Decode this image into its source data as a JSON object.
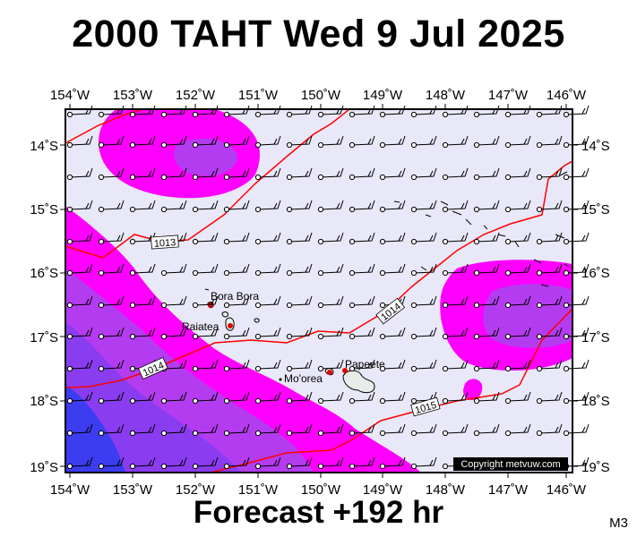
{
  "title": "2000 TAHT Wed 9 Jul 2025",
  "subtitle": "Forecast +192 hr",
  "code": "M3",
  "copyright": "Copyright metvuw.com",
  "colors": {
    "background": "#e8e8f8",
    "magenta": "#ff00ff",
    "violet": "#b43cf0",
    "purple": "#8a3cf0",
    "blue": "#3c3cf0",
    "isobar": "#ff0000",
    "frame": "#000000"
  },
  "axes": {
    "lon_labels": [
      "154˚W",
      "153˚W",
      "152˚W",
      "151˚W",
      "150˚W",
      "149˚W",
      "148˚W",
      "147˚W",
      "146˚W"
    ],
    "lat_labels": [
      "14˚S",
      "15˚S",
      "16˚S",
      "17˚S",
      "18˚S",
      "19˚S"
    ],
    "lon_range": [
      -154,
      -146
    ],
    "lat_range": [
      -13.5,
      -19.1
    ]
  },
  "isobar_labels": [
    "1013",
    "1014",
    "1014",
    "1015"
  ],
  "places": [
    "Bora Bora",
    "Raiatea",
    "Mo'orea",
    "Papeete"
  ]
}
